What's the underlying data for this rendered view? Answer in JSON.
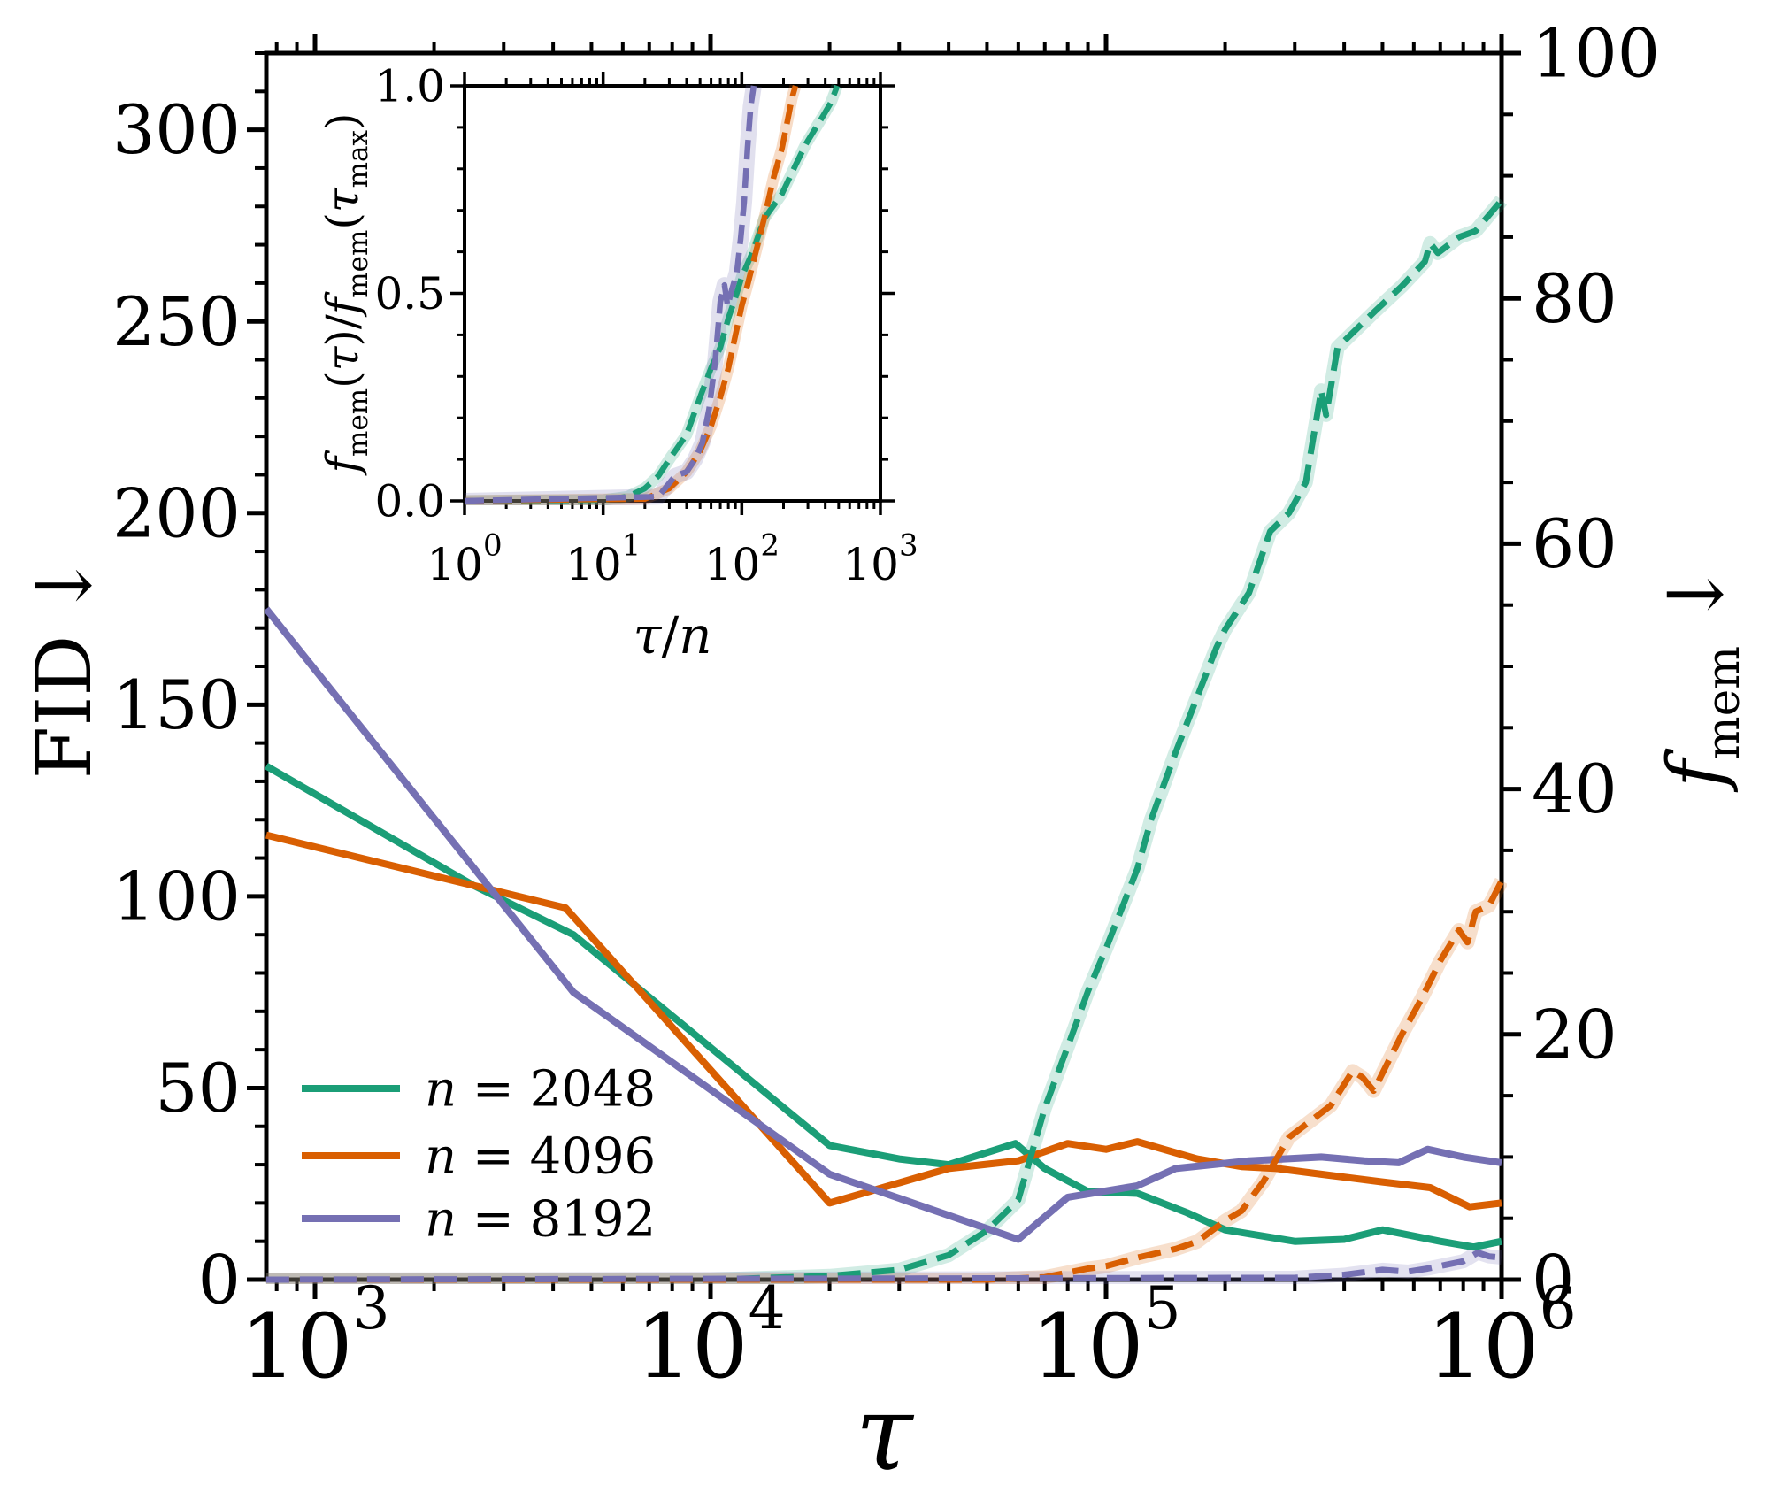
{
  "chart_data": {
    "type": "line",
    "colors": {
      "n2048": "#1b9e77",
      "n4096": "#d95f02",
      "n8192": "#7570b3",
      "axis": "#000000"
    },
    "main": {
      "xlabel": "τ",
      "xscale": "log",
      "xlim": [
        753,
        1000000
      ],
      "x_major_ticks": [
        1000,
        10000,
        100000,
        1000000
      ],
      "x_tick_exponents": [
        3,
        4,
        5,
        6
      ],
      "left_axis": {
        "label": "FID",
        "arrow": "↓",
        "lim": [
          0,
          320
        ],
        "major_ticks": [
          0,
          50,
          100,
          150,
          200,
          250,
          300
        ],
        "minor_step": 10
      },
      "right_axis": {
        "label_f": "f",
        "label_sub": "mem",
        "arrow": "↓",
        "lim": [
          0,
          100
        ],
        "major_ticks": [
          0,
          20,
          40,
          60,
          80,
          100
        ],
        "minor_step": 5
      },
      "series": [
        {
          "name": "n = 2048",
          "color": "#1b9e77",
          "style": "solid",
          "axis": "left",
          "points": [
            [
              753,
              134
            ],
            [
              2500,
              103
            ],
            [
              4500,
              90
            ],
            [
              20000,
              35
            ],
            [
              30000,
              31.5
            ],
            [
              40000,
              30
            ],
            [
              46000,
              32
            ],
            [
              59000,
              35.5
            ],
            [
              70000,
              29
            ],
            [
              90000,
              23
            ],
            [
              120000,
              22.5
            ],
            [
              160000,
              17.5
            ],
            [
              200000,
              13
            ],
            [
              300000,
              10
            ],
            [
              400000,
              10.5
            ],
            [
              500000,
              13
            ],
            [
              700000,
              10
            ],
            [
              850000,
              8.5
            ],
            [
              1000000,
              10
            ]
          ]
        },
        {
          "name": "n = 4096",
          "color": "#d95f02",
          "style": "solid",
          "axis": "left",
          "points": [
            [
              753,
              116
            ],
            [
              4300,
              97
            ],
            [
              20000,
              20
            ],
            [
              40000,
              29
            ],
            [
              60000,
              31
            ],
            [
              80000,
              35.5
            ],
            [
              100000,
              34
            ],
            [
              120000,
              36
            ],
            [
              170000,
              31.5
            ],
            [
              220000,
              29.5
            ],
            [
              270000,
              29
            ],
            [
              350000,
              27.5
            ],
            [
              500000,
              25.5
            ],
            [
              660000,
              24
            ],
            [
              830000,
              19
            ],
            [
              1000000,
              20
            ]
          ]
        },
        {
          "name": "n = 8192",
          "color": "#7570b3",
          "style": "solid",
          "axis": "left",
          "points": [
            [
              753,
              175
            ],
            [
              4500,
              75
            ],
            [
              20000,
              27.5
            ],
            [
              60000,
              10.5
            ],
            [
              80000,
              21.5
            ],
            [
              120000,
              24.5
            ],
            [
              150000,
              29
            ],
            [
              230000,
              31
            ],
            [
              350000,
              32
            ],
            [
              450000,
              31
            ],
            [
              550000,
              30.5
            ],
            [
              650000,
              34
            ],
            [
              800000,
              32
            ],
            [
              1000000,
              30.5
            ]
          ]
        },
        {
          "name": "n = 2048 (f_mem)",
          "color": "#1b9e77",
          "style": "dashed",
          "axis": "right",
          "points": [
            [
              753,
              0
            ],
            [
              10000,
              0
            ],
            [
              20000,
              0.3
            ],
            [
              30000,
              0.8
            ],
            [
              40000,
              2
            ],
            [
              50000,
              4
            ],
            [
              60000,
              6.5
            ],
            [
              70000,
              14
            ],
            [
              80000,
              19
            ],
            [
              90000,
              23.5
            ],
            [
              100000,
              27
            ],
            [
              120000,
              33.5
            ],
            [
              130000,
              37.5
            ],
            [
              150000,
              43
            ],
            [
              190000,
              51.5
            ],
            [
              200000,
              53
            ],
            [
              230000,
              56
            ],
            [
              260000,
              61
            ],
            [
              290000,
              62.5
            ],
            [
              320000,
              65
            ],
            [
              350000,
              72.5
            ],
            [
              360000,
              70.5
            ],
            [
              385000,
              76
            ],
            [
              480000,
              79
            ],
            [
              560000,
              81
            ],
            [
              640000,
              83
            ],
            [
              660000,
              84.5
            ],
            [
              690000,
              83.7
            ],
            [
              780000,
              85
            ],
            [
              860000,
              85.5
            ],
            [
              1000000,
              88
            ]
          ]
        },
        {
          "name": "n = 4096 (f_mem)",
          "color": "#d95f02",
          "style": "dashed",
          "axis": "right",
          "points": [
            [
              753,
              0
            ],
            [
              50000,
              0
            ],
            [
              70000,
              0.2
            ],
            [
              90000,
              0.9
            ],
            [
              100000,
              1.1
            ],
            [
              120000,
              1.8
            ],
            [
              150000,
              2.5
            ],
            [
              170000,
              3.1
            ],
            [
              200000,
              4.8
            ],
            [
              220000,
              5.6
            ],
            [
              250000,
              8
            ],
            [
              290000,
              11.6
            ],
            [
              310000,
              12.3
            ],
            [
              370000,
              14.2
            ],
            [
              420000,
              17
            ],
            [
              445000,
              16.5
            ],
            [
              475000,
              15.4
            ],
            [
              560000,
              20
            ],
            [
              630000,
              23
            ],
            [
              700000,
              26
            ],
            [
              780000,
              28.5
            ],
            [
              820000,
              27.5
            ],
            [
              860000,
              30
            ],
            [
              930000,
              30.5
            ],
            [
              1000000,
              32.5
            ]
          ]
        },
        {
          "name": "n = 8192 (f_mem)",
          "color": "#7570b3",
          "style": "dashed",
          "axis": "right",
          "points": [
            [
              753,
              0
            ],
            [
              300000,
              0.15
            ],
            [
              400000,
              0.4
            ],
            [
              500000,
              0.8
            ],
            [
              580000,
              0.65
            ],
            [
              650000,
              0.9
            ],
            [
              720000,
              1.2
            ],
            [
              800000,
              1.5
            ],
            [
              870000,
              2.2
            ],
            [
              930000,
              1.9
            ],
            [
              1000000,
              1.8
            ]
          ]
        }
      ]
    },
    "legend": [
      {
        "label_var": "n",
        "label_rest": " = 2048",
        "color": "#1b9e77"
      },
      {
        "label_var": "n",
        "label_rest": " = 4096",
        "color": "#d95f02"
      },
      {
        "label_var": "n",
        "label_rest": " = 8192",
        "color": "#7570b3"
      }
    ],
    "inset": {
      "xlabel_num": "τ",
      "xlabel_den": "n",
      "xscale": "log",
      "xlim": [
        1,
        1000
      ],
      "x_tick_exponents": [
        0,
        1,
        2,
        3
      ],
      "ylim": [
        0,
        1
      ],
      "y_major_ticks": [
        "0.0",
        "0.5",
        "1.0"
      ],
      "y_minor_step": 0.1,
      "series": [
        {
          "name": "n = 2048",
          "color": "#1b9e77",
          "style": "dashed",
          "points": [
            [
              1,
              0
            ],
            [
              10,
              0.002
            ],
            [
              15,
              0.01
            ],
            [
              20,
              0.03
            ],
            [
              25,
              0.06
            ],
            [
              30,
              0.1
            ],
            [
              40,
              0.16
            ],
            [
              50,
              0.25
            ],
            [
              60,
              0.32
            ],
            [
              70,
              0.37
            ],
            [
              80,
              0.44
            ],
            [
              90,
              0.49
            ],
            [
              100,
              0.54
            ],
            [
              120,
              0.6
            ],
            [
              145,
              0.68
            ],
            [
              195,
              0.74
            ],
            [
              245,
              0.81
            ],
            [
              290,
              0.86
            ],
            [
              390,
              0.93
            ],
            [
              440,
              0.96
            ],
            [
              488,
              1.0
            ]
          ]
        },
        {
          "name": "n = 4096",
          "color": "#d95f02",
          "style": "dashed",
          "points": [
            [
              1,
              0
            ],
            [
              20,
              0.005
            ],
            [
              30,
              0.03
            ],
            [
              40,
              0.07
            ],
            [
              50,
              0.12
            ],
            [
              60,
              0.18
            ],
            [
              70,
              0.25
            ],
            [
              80,
              0.32
            ],
            [
              90,
              0.4
            ],
            [
              100,
              0.47
            ],
            [
              110,
              0.52
            ],
            [
              120,
              0.57
            ],
            [
              145,
              0.68
            ],
            [
              170,
              0.78
            ],
            [
              195,
              0.85
            ],
            [
              215,
              0.92
            ],
            [
              230,
              0.97
            ],
            [
              244,
              1.0
            ]
          ]
        },
        {
          "name": "n = 8192",
          "color": "#7570b3",
          "style": "dashed",
          "points": [
            [
              1,
              0
            ],
            [
              25,
              0.01
            ],
            [
              33,
              0.06
            ],
            [
              40,
              0.07
            ],
            [
              46,
              0.1
            ],
            [
              52,
              0.14
            ],
            [
              58,
              0.22
            ],
            [
              64,
              0.33
            ],
            [
              70,
              0.48
            ],
            [
              75,
              0.52
            ],
            [
              79,
              0.47
            ],
            [
              85,
              0.51
            ],
            [
              92,
              0.55
            ],
            [
              98,
              0.63
            ],
            [
              104,
              0.72
            ],
            [
              110,
              0.85
            ],
            [
              116,
              0.95
            ],
            [
              122,
              1.0
            ]
          ]
        }
      ]
    }
  }
}
